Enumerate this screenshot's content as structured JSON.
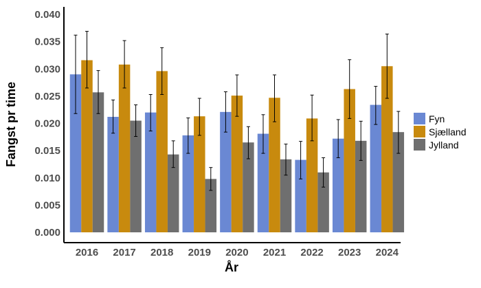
{
  "chart_data": {
    "type": "bar",
    "xlabel": "År",
    "ylabel": "Fangst pr time",
    "ylim": [
      0,
      0.04
    ],
    "yticks": [
      "0.000",
      "0.005",
      "0.010",
      "0.015",
      "0.020",
      "0.025",
      "0.030",
      "0.035",
      "0.040"
    ],
    "categories": [
      "2016",
      "2017",
      "2018",
      "2019",
      "2020",
      "2021",
      "2022",
      "2023",
      "2024"
    ],
    "series": [
      {
        "name": "Fyn",
        "color": "#6a88d3",
        "values": [
          0.029,
          0.0212,
          0.022,
          0.0178,
          0.0221,
          0.0181,
          0.0133,
          0.0172,
          0.0234
        ],
        "error_low": [
          0.0218,
          0.0182,
          0.0186,
          0.0145,
          0.0184,
          0.0145,
          0.0098,
          0.0137,
          0.0198
        ],
        "error_high": [
          0.0362,
          0.0243,
          0.0253,
          0.021,
          0.0258,
          0.0216,
          0.0167,
          0.0207,
          0.0268
        ]
      },
      {
        "name": "Sjælland",
        "color": "#c88a0e",
        "values": [
          0.0316,
          0.0308,
          0.0296,
          0.0213,
          0.0251,
          0.0247,
          0.0209,
          0.0263,
          0.0305
        ],
        "error_low": [
          0.0265,
          0.0265,
          0.0253,
          0.0178,
          0.0213,
          0.0203,
          0.0168,
          0.0209,
          0.0246
        ],
        "error_high": [
          0.0369,
          0.0352,
          0.0339,
          0.0246,
          0.0289,
          0.0289,
          0.0252,
          0.0317,
          0.0364
        ]
      },
      {
        "name": "Jylland",
        "color": "#6f6f6f",
        "values": [
          0.0257,
          0.0205,
          0.0143,
          0.0098,
          0.0165,
          0.0134,
          0.011,
          0.0168,
          0.0184
        ],
        "error_low": [
          0.0218,
          0.0176,
          0.0119,
          0.0077,
          0.0135,
          0.0105,
          0.0083,
          0.0132,
          0.0145
        ],
        "error_high": [
          0.0297,
          0.0234,
          0.0168,
          0.0119,
          0.0194,
          0.0162,
          0.0137,
          0.0204,
          0.0222
        ]
      }
    ],
    "legend": {
      "position": "right"
    },
    "grid": false
  }
}
